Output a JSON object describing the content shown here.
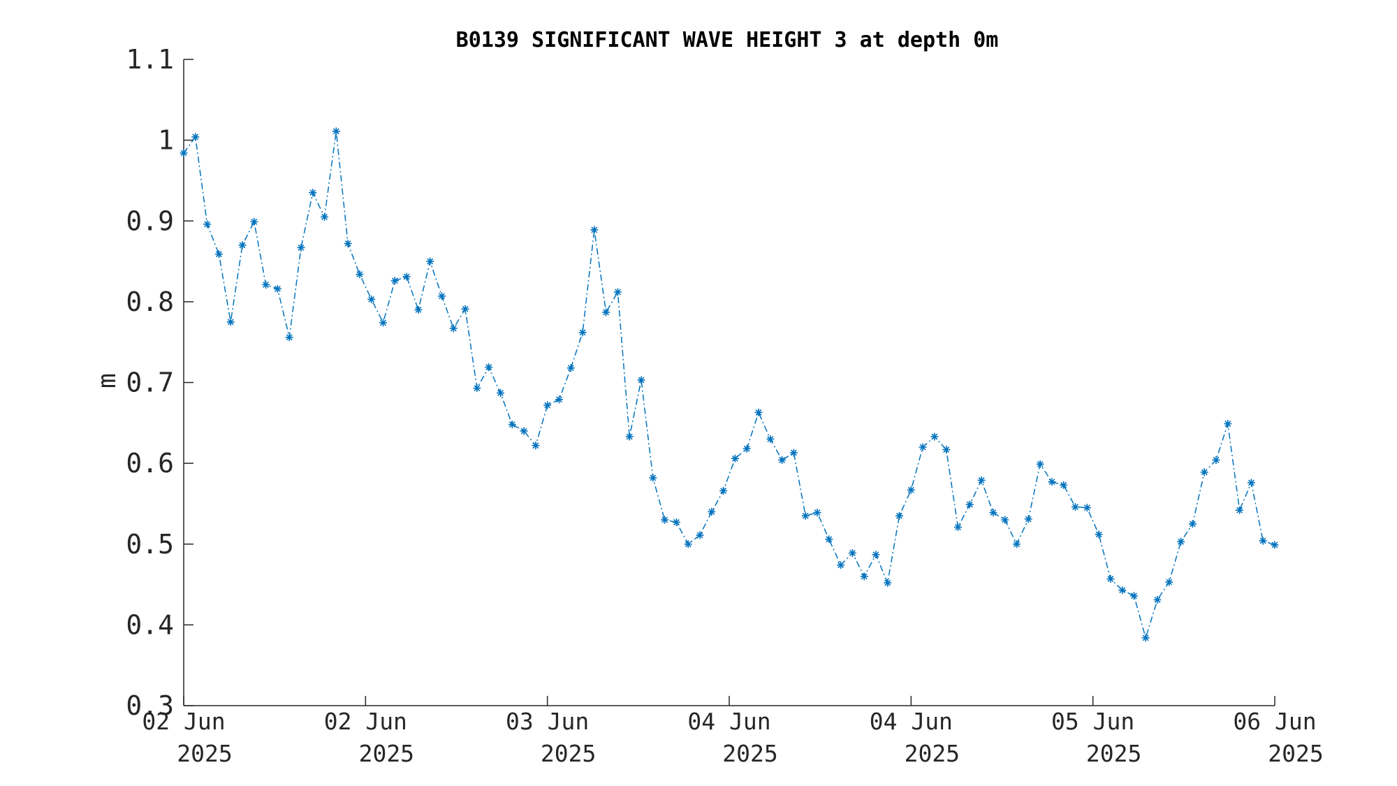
{
  "chart_data": {
    "type": "line",
    "title": "B0139 SIGNIFICANT WAVE HEIGHT 3 at depth 0m",
    "xlabel": "",
    "ylabel": "m",
    "ylim": [
      0.3,
      1.1
    ],
    "yticks": [
      "0.3",
      "0.4",
      "0.5",
      "0.6",
      "0.7",
      "0.8",
      "0.9",
      "1",
      "1.1"
    ],
    "xlim": [
      "2025-06-02 00:00",
      "2025-06-06 00:00"
    ],
    "xticks": [
      {
        "line1": "02 Jun",
        "line2": "2025"
      },
      {
        "line1": "02 Jun",
        "line2": "2025"
      },
      {
        "line1": "03 Jun",
        "line2": "2025"
      },
      {
        "line1": "04 Jun",
        "line2": "2025"
      },
      {
        "line1": "04 Jun",
        "line2": "2025"
      },
      {
        "line1": "05 Jun",
        "line2": "2025"
      },
      {
        "line1": "06 Jun",
        "line2": "2025"
      }
    ],
    "grid": false,
    "marker": "asterisk",
    "line_style": "dash-dot",
    "color": "#0072bd",
    "series": [
      {
        "name": "",
        "y": [
          0.984,
          1.004,
          0.896,
          0.859,
          0.775,
          0.87,
          0.899,
          0.821,
          0.816,
          0.756,
          0.867,
          0.935,
          0.905,
          1.011,
          0.872,
          0.834,
          0.803,
          0.774,
          0.826,
          0.831,
          0.79,
          0.85,
          0.807,
          0.767,
          0.791,
          0.693,
          0.719,
          0.687,
          0.648,
          0.64,
          0.622,
          0.672,
          0.679,
          0.718,
          0.762,
          0.889,
          0.787,
          0.812,
          0.633,
          0.703,
          0.582,
          0.53,
          0.527,
          0.5,
          0.511,
          0.54,
          0.566,
          0.606,
          0.618,
          0.663,
          0.63,
          0.604,
          0.613,
          0.535,
          0.539,
          0.506,
          0.474,
          0.489,
          0.46,
          0.487,
          0.452,
          0.535,
          0.567,
          0.62,
          0.633,
          0.617,
          0.521,
          0.549,
          0.579,
          0.539,
          0.53,
          0.5,
          0.531,
          0.599,
          0.577,
          0.573,
          0.546,
          0.545,
          0.512,
          0.457,
          0.443,
          0.436,
          0.384,
          0.431,
          0.453,
          0.503,
          0.525,
          0.589,
          0.604,
          0.649,
          0.542,
          0.576,
          0.504,
          0.499
        ]
      }
    ]
  }
}
